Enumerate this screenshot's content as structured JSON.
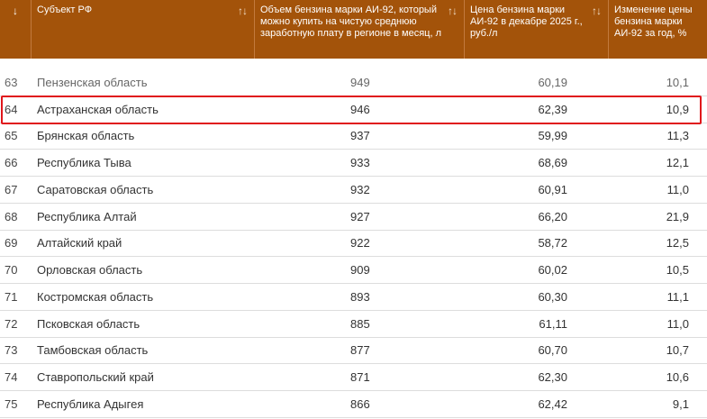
{
  "header": {
    "sort_arrow": "↓",
    "sort_icon": "↑↓",
    "columns": {
      "region": "Субъект РФ",
      "volume": "Объем бензина марки АИ-92, который можно купить на чистую среднюю заработную плату в регионе в месяц, л",
      "price": "Цена бензина марки АИ-92 в декабре 2025 г., руб./л",
      "change": "Изменение цены бензина марки АИ-92 за год, %"
    }
  },
  "rows": [
    {
      "rank": "63",
      "region": "Пензенская область",
      "volume": "949",
      "price": "60,19",
      "change": "10,1"
    },
    {
      "rank": "64",
      "region": "Астраханская область",
      "volume": "946",
      "price": "62,39",
      "change": "10,9"
    },
    {
      "rank": "65",
      "region": "Брянская область",
      "volume": "937",
      "price": "59,99",
      "change": "11,3"
    },
    {
      "rank": "66",
      "region": "Республика Тыва",
      "volume": "933",
      "price": "68,69",
      "change": "12,1"
    },
    {
      "rank": "67",
      "region": "Саратовская область",
      "volume": "932",
      "price": "60,91",
      "change": "11,0"
    },
    {
      "rank": "68",
      "region": "Республика Алтай",
      "volume": "927",
      "price": "66,20",
      "change": "21,9"
    },
    {
      "rank": "69",
      "region": "Алтайский край",
      "volume": "922",
      "price": "58,72",
      "change": "12,5"
    },
    {
      "rank": "70",
      "region": "Орловская область",
      "volume": "909",
      "price": "60,02",
      "change": "10,5"
    },
    {
      "rank": "71",
      "region": "Костромская область",
      "volume": "893",
      "price": "60,30",
      "change": "11,1"
    },
    {
      "rank": "72",
      "region": "Псковская область",
      "volume": "885",
      "price": "61,11",
      "change": "11,0"
    },
    {
      "rank": "73",
      "region": "Тамбовская область",
      "volume": "877",
      "price": "60,70",
      "change": "10,7"
    },
    {
      "rank": "74",
      "region": "Ставропольский край",
      "volume": "871",
      "price": "62,30",
      "change": "10,6"
    },
    {
      "rank": "75",
      "region": "Республика Адыгея",
      "volume": "866",
      "price": "62,42",
      "change": "9,1"
    }
  ],
  "highlighted_rank": "64",
  "colors": {
    "header_bg": "#a3530a",
    "highlight_border": "#e0161b"
  }
}
